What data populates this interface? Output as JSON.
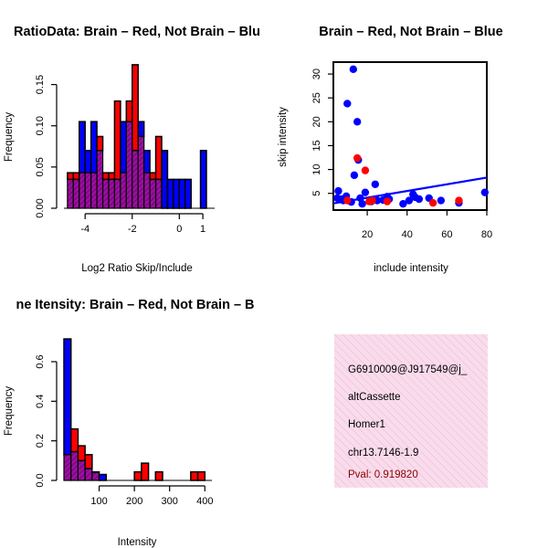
{
  "colors": {
    "red": "#ff0000",
    "blue": "#0000ff",
    "purple": "#9a0fa0",
    "outline": "#000000",
    "info_bg": "#f9dcec",
    "info_stripe": "#efb4d2",
    "pval": "#8b0000"
  },
  "chart_data": [
    {
      "type": "bar",
      "name": "ratio-histogram",
      "title": "RatioData: Brain – Red, Not Brain – Blu",
      "xlabel": "Log2 Ratio Skip/Include",
      "ylabel": "Frequency",
      "xlim": [
        -4.9,
        1.5
      ],
      "ylim": [
        0,
        0.175
      ],
      "xticks": [
        -4,
        -2,
        0,
        1
      ],
      "yticks": [
        0,
        0.05,
        0.1,
        0.15
      ],
      "ytick_labels": [
        "0.00",
        "0.05",
        "0.10",
        "0.15"
      ],
      "bin_width": 0.25,
      "series": [
        {
          "name": "Not Brain",
          "color": "blue",
          "bins": [
            {
              "x0": -4.75,
              "v": 0.035
            },
            {
              "x0": -4.5,
              "v": 0.035
            },
            {
              "x0": -4.25,
              "v": 0.105
            },
            {
              "x0": -4.0,
              "v": 0.07
            },
            {
              "x0": -3.75,
              "v": 0.105
            },
            {
              "x0": -3.5,
              "v": 0.07
            },
            {
              "x0": -3.25,
              "v": 0.035
            },
            {
              "x0": -3.0,
              "v": 0.035
            },
            {
              "x0": -2.75,
              "v": 0.035
            },
            {
              "x0": -2.5,
              "v": 0.105
            },
            {
              "x0": -2.25,
              "v": 0.105
            },
            {
              "x0": -2.0,
              "v": 0.07
            },
            {
              "x0": -1.75,
              "v": 0.105
            },
            {
              "x0": -1.5,
              "v": 0.07
            },
            {
              "x0": -1.25,
              "v": 0.035
            },
            {
              "x0": -1.0,
              "v": 0.035
            },
            {
              "x0": -0.75,
              "v": 0.07
            },
            {
              "x0": -0.5,
              "v": 0.035
            },
            {
              "x0": -0.25,
              "v": 0.035
            },
            {
              "x0": 0.0,
              "v": 0.035
            },
            {
              "x0": 0.25,
              "v": 0.035
            },
            {
              "x0": 0.9,
              "v": 0.07
            }
          ]
        },
        {
          "name": "Brain",
          "color": "red",
          "bins": [
            {
              "x0": -4.75,
              "v": 0.043
            },
            {
              "x0": -4.5,
              "v": 0.043
            },
            {
              "x0": -4.25,
              "v": 0.043
            },
            {
              "x0": -4.0,
              "v": 0.043
            },
            {
              "x0": -3.75,
              "v": 0.043
            },
            {
              "x0": -3.5,
              "v": 0.087
            },
            {
              "x0": -3.25,
              "v": 0.043
            },
            {
              "x0": -3.0,
              "v": 0.043
            },
            {
              "x0": -2.75,
              "v": 0.13
            },
            {
              "x0": -2.5,
              "v": 0.043
            },
            {
              "x0": -2.25,
              "v": 0.13
            },
            {
              "x0": -2.0,
              "v": 0.174
            },
            {
              "x0": -1.75,
              "v": 0.087
            },
            {
              "x0": -1.5,
              "v": 0.043
            },
            {
              "x0": -1.25,
              "v": 0.043
            },
            {
              "x0": -1.0,
              "v": 0.087
            }
          ]
        }
      ]
    },
    {
      "type": "scatter",
      "name": "skip-include-scatter",
      "title": "Brain – Red, Not Brain – Blue",
      "xlabel": "include intensity",
      "ylabel": "skip intensity",
      "xlim": [
        3,
        80
      ],
      "ylim": [
        1.5,
        32.5
      ],
      "xticks": [
        20,
        40,
        60,
        80
      ],
      "yticks": [
        5,
        10,
        15,
        20,
        25,
        30
      ],
      "series": [
        {
          "name": "Not Brain",
          "color": "blue",
          "points": [
            [
              5,
              4
            ],
            [
              5.5,
              5.5
            ],
            [
              7,
              3.8
            ],
            [
              8,
              3.5
            ],
            [
              9.5,
              4.4
            ],
            [
              10,
              23.8
            ],
            [
              12,
              3.2
            ],
            [
              13,
              31
            ],
            [
              13.5,
              8.8
            ],
            [
              15,
              20
            ],
            [
              15.5,
              12
            ],
            [
              16.5,
              4
            ],
            [
              17.5,
              2.8
            ],
            [
              19,
              5.2
            ],
            [
              22,
              3.3
            ],
            [
              24,
              6.9
            ],
            [
              25,
              3.5
            ],
            [
              28,
              3.6
            ],
            [
              30,
              4.3
            ],
            [
              31,
              3.8
            ],
            [
              38,
              2.8
            ],
            [
              41,
              3.5
            ],
            [
              43,
              4.8
            ],
            [
              44,
              4.2
            ],
            [
              46,
              3.8
            ],
            [
              51,
              4
            ],
            [
              57,
              3.5
            ],
            [
              66,
              3
            ],
            [
              79,
              5.2
            ]
          ]
        },
        {
          "name": "Brain",
          "color": "red",
          "points": [
            [
              10,
              3.5
            ],
            [
              15,
              12.4
            ],
            [
              19,
              9.8
            ],
            [
              21,
              3.3
            ],
            [
              22.5,
              3.5
            ],
            [
              30,
              3.3
            ],
            [
              53,
              3
            ],
            [
              66,
              3.5
            ]
          ]
        }
      ],
      "fit_line": {
        "color": "blue",
        "x": [
          3,
          80
        ],
        "y": [
          2.9,
          8.3
        ]
      }
    },
    {
      "type": "bar",
      "name": "intensity-histogram",
      "title": "ne Itensity: Brain – Red, Not Brain – B",
      "xlabel": "Intensity",
      "ylabel": "Frequency",
      "xlim": [
        0,
        420
      ],
      "ylim": [
        0,
        0.72
      ],
      "xticks": [
        100,
        200,
        300,
        400
      ],
      "yticks": [
        0,
        0.2,
        0.4,
        0.6
      ],
      "ytick_labels": [
        "0.0",
        "0.2",
        "0.4",
        "0.6"
      ],
      "bin_width": 20,
      "series": [
        {
          "name": "Not Brain",
          "color": "blue",
          "bins": [
            {
              "x0": 0,
              "v": 0.715
            },
            {
              "x0": 20,
              "v": 0.145
            },
            {
              "x0": 40,
              "v": 0.1
            },
            {
              "x0": 60,
              "v": 0.06
            },
            {
              "x0": 80,
              "v": 0.04
            },
            {
              "x0": 100,
              "v": 0.03
            }
          ]
        },
        {
          "name": "Brain",
          "color": "red",
          "bins": [
            {
              "x0": 0,
              "v": 0.13
            },
            {
              "x0": 20,
              "v": 0.26
            },
            {
              "x0": 40,
              "v": 0.175
            },
            {
              "x0": 60,
              "v": 0.13
            },
            {
              "x0": 80,
              "v": 0.043
            },
            {
              "x0": 200,
              "v": 0.043
            },
            {
              "x0": 220,
              "v": 0.087
            },
            {
              "x0": 260,
              "v": 0.043
            },
            {
              "x0": 360,
              "v": 0.043
            },
            {
              "x0": 380,
              "v": 0.043
            }
          ]
        }
      ]
    }
  ],
  "info_panel": {
    "event_id": "G6910009@J917549@j_",
    "event_type": "altCassette",
    "gene": "Homer1",
    "location": "chr13.7146-1.9",
    "pval": "Pval: 0.919820"
  }
}
